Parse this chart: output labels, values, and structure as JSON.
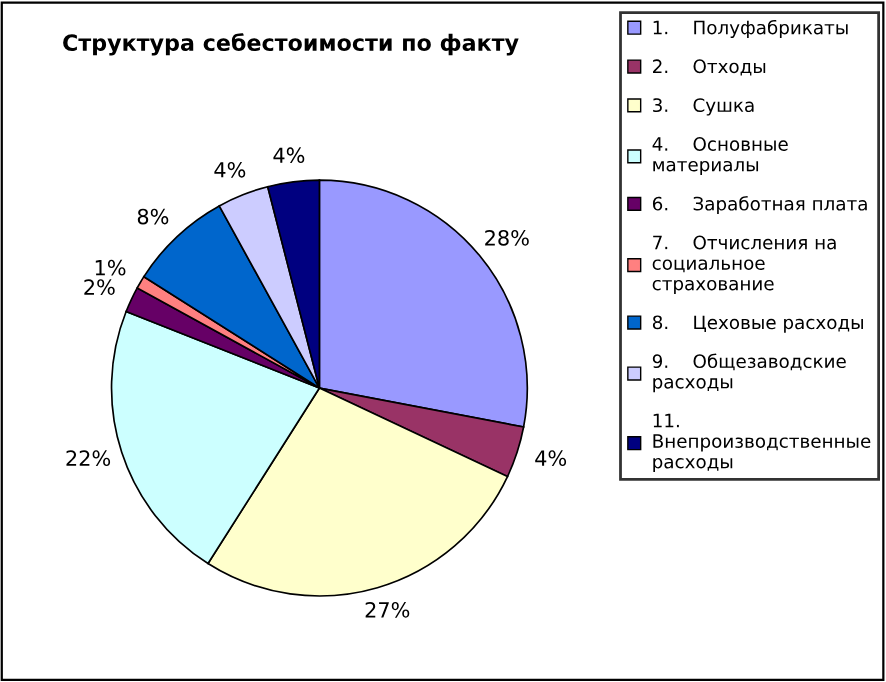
{
  "chart_data": {
    "type": "pie",
    "title": "Структура себестоимости по факту",
    "categories": [
      "1.    Полуфабрикаты",
      "2.    Отходы",
      "3.    Сушка",
      "4.    Основные\nматериалы",
      "6.    Заработная плата",
      "7.    Отчисления на\nсоциальное\nстрахование",
      "8.    Цеховые расходы",
      "9.    Общезаводские\nрасходы",
      "11.\nВнепроизводственные\nрасходы"
    ],
    "values": [
      28,
      4,
      27,
      22,
      2,
      1,
      8,
      4,
      4
    ],
    "colors": [
      "#9999ff",
      "#993366",
      "#ffffcc",
      "#ccffff",
      "#660066",
      "#ff8080",
      "#0066cc",
      "#ccccff",
      "#000080"
    ],
    "value_labels": [
      "28%",
      "4%",
      "27%",
      "22%",
      "2%",
      "1%",
      "8%",
      "4%",
      "4%"
    ],
    "legend": "right"
  }
}
